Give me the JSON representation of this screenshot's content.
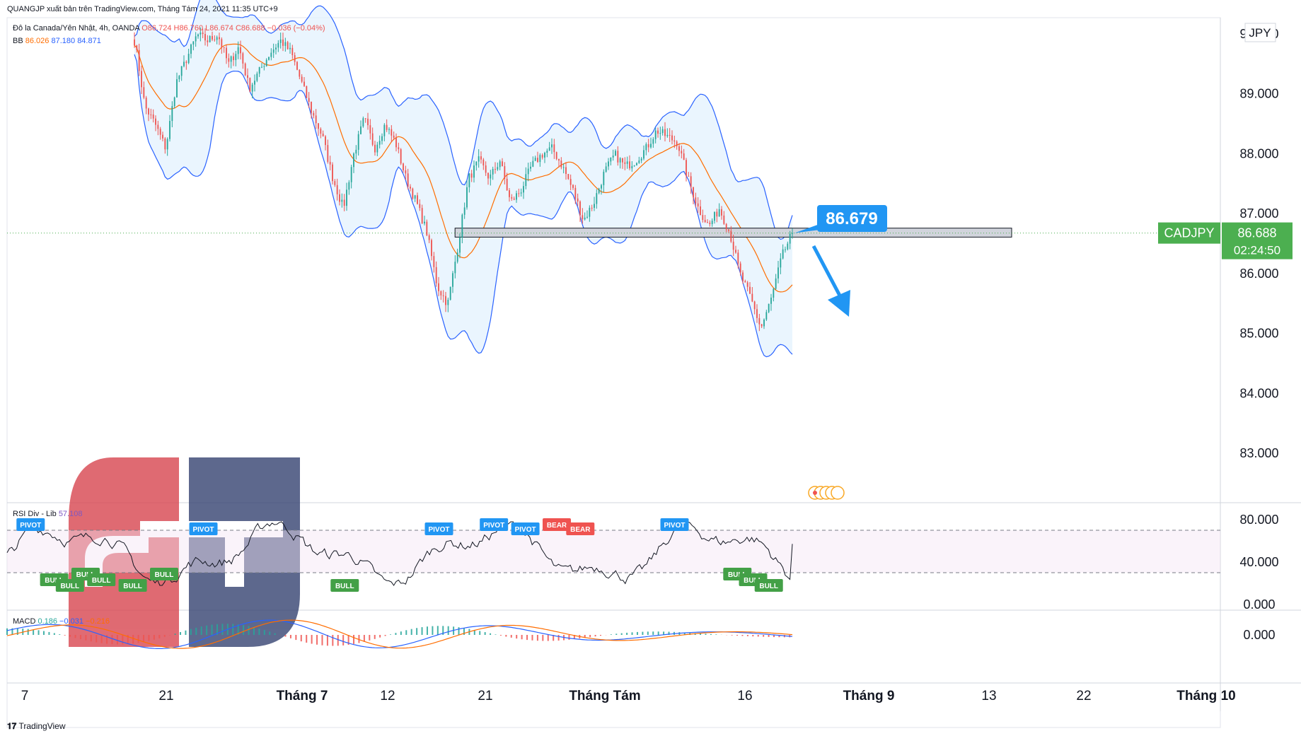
{
  "header": {
    "publisher": "QUANGJP xuất bản trên TradingView.com, Tháng Tám 24, 2021 11:35 UTC+9",
    "symbol_desc": "Đô la Canada/Yên Nhật, 4h, OANDA",
    "ohlc": {
      "o": "O86.724",
      "h": "H86.760",
      "l": "L86.674",
      "c": "C86.688",
      "chg": "−0.036 (−0.04%)"
    },
    "bb_label": "BB",
    "bb_values": [
      "86.026",
      "87.180",
      "84.871"
    ]
  },
  "currency_label": "JPY",
  "symbol": "CADJPY",
  "last_price": "86.688",
  "countdown": "02:24:50",
  "callout_price": "86.679",
  "rsi_label": "RSI Div - Lib",
  "rsi_value": "57.108",
  "macd_label": "MACD",
  "macd_values": [
    "0.186",
    "−0.031",
    "−0.216"
  ],
  "footer_brand": "TradingView",
  "colors": {
    "up": "#26a69a",
    "down": "#ef5350",
    "bb_band": "#2962ff",
    "bb_fill": "#e3f2fd",
    "bb_basis": "#ff6d00",
    "callout": "#2196f3",
    "price_tag": "#4caf50",
    "rsi_line": "#131722",
    "bull": "#43a047",
    "bear": "#ef5350",
    "pivot": "#2196f3",
    "logo_red": "#d94a54",
    "logo_navy": "#3a4875"
  },
  "chart_data": [
    {
      "type": "candlestick",
      "title": "Đô la Canada/Yên Nhật, 4h, OANDA",
      "ylim": [
        82.4,
        90.2
      ],
      "y_ticks": [
        "90.000",
        "89.000",
        "88.000",
        "87.000",
        "86.000",
        "85.000",
        "84.000",
        "83.000"
      ],
      "x_ticks": [
        "7",
        "21",
        "Tháng 7",
        "12",
        "21",
        "Tháng Tám",
        "16",
        "Tháng 9",
        "13",
        "22",
        "Tháng 10"
      ],
      "close_path": [
        [
          0,
          89.9
        ],
        [
          0.3,
          89.6
        ],
        [
          1,
          88.8
        ],
        [
          2,
          88.5
        ],
        [
          3,
          88.1
        ],
        [
          4,
          89.2
        ],
        [
          5,
          89.6
        ],
        [
          6,
          90.0
        ],
        [
          7,
          89.9
        ],
        [
          8,
          90.0
        ],
        [
          9,
          89.5
        ],
        [
          10,
          89.8
        ],
        [
          11,
          89.1
        ],
        [
          12,
          89.4
        ],
        [
          13,
          89.7
        ],
        [
          14,
          89.9
        ],
        [
          15,
          89.7
        ],
        [
          16,
          89.2
        ],
        [
          17,
          88.7
        ],
        [
          18,
          88.3
        ],
        [
          19,
          87.6
        ],
        [
          20,
          87.1
        ],
        [
          21,
          88.0
        ],
        [
          22,
          88.6
        ],
        [
          23,
          88.1
        ],
        [
          24,
          88.5
        ],
        [
          25,
          88.2
        ],
        [
          26,
          87.6
        ],
        [
          27,
          87.2
        ],
        [
          28,
          86.7
        ],
        [
          29,
          85.8
        ],
        [
          30,
          85.5
        ],
        [
          31,
          86.5
        ],
        [
          32,
          87.6
        ],
        [
          33,
          87.9
        ],
        [
          34,
          87.6
        ],
        [
          35,
          87.9
        ],
        [
          36,
          87.2
        ],
        [
          37,
          87.4
        ],
        [
          38,
          87.8
        ],
        [
          39,
          88.0
        ],
        [
          40,
          88.1
        ],
        [
          41,
          87.8
        ],
        [
          42,
          87.4
        ],
        [
          43,
          86.9
        ],
        [
          44,
          87.2
        ],
        [
          45,
          87.7
        ],
        [
          46,
          88.0
        ],
        [
          47,
          87.8
        ],
        [
          48,
          87.9
        ],
        [
          49,
          88.1
        ],
        [
          50,
          88.4
        ],
        [
          51,
          88.3
        ],
        [
          52,
          88.2
        ],
        [
          53,
          87.6
        ],
        [
          54,
          87.1
        ],
        [
          55,
          86.8
        ],
        [
          56,
          87.1
        ],
        [
          57,
          86.7
        ],
        [
          58,
          86.0
        ],
        [
          59,
          85.6
        ],
        [
          60,
          85.1
        ],
        [
          61,
          85.6
        ],
        [
          62,
          86.3
        ],
        [
          63,
          86.69
        ]
      ],
      "bollinger": {
        "period_label": "BB",
        "basis": 86.026,
        "upper": 87.18,
        "lower": 84.871
      },
      "support_zone": [
        86.62,
        86.77
      ],
      "last_price": 86.688,
      "annotation": "86.679"
    },
    {
      "type": "line",
      "title": "RSI Div - Lib",
      "ylim": [
        0,
        80
      ],
      "y_ticks": [
        "80.000",
        "40.000",
        "0.000"
      ],
      "levels": [
        70,
        30
      ],
      "last_value": 57.108,
      "markers": [
        "PIVOT",
        "BULL",
        "BULL",
        "BULL",
        "BULL",
        "BULL",
        "BULL",
        "PIVOT",
        "BULL",
        "PIVOT",
        "PIVOT",
        "PIVOT",
        "BEAR",
        "BEAR",
        "PIVOT",
        "BULL",
        "BULL",
        "BULL"
      ]
    },
    {
      "type": "histogram",
      "title": "MACD",
      "y_ticks": [
        "0.000"
      ],
      "values": {
        "histogram": 0.186,
        "macd": -0.031,
        "signal": -0.216
      }
    }
  ]
}
